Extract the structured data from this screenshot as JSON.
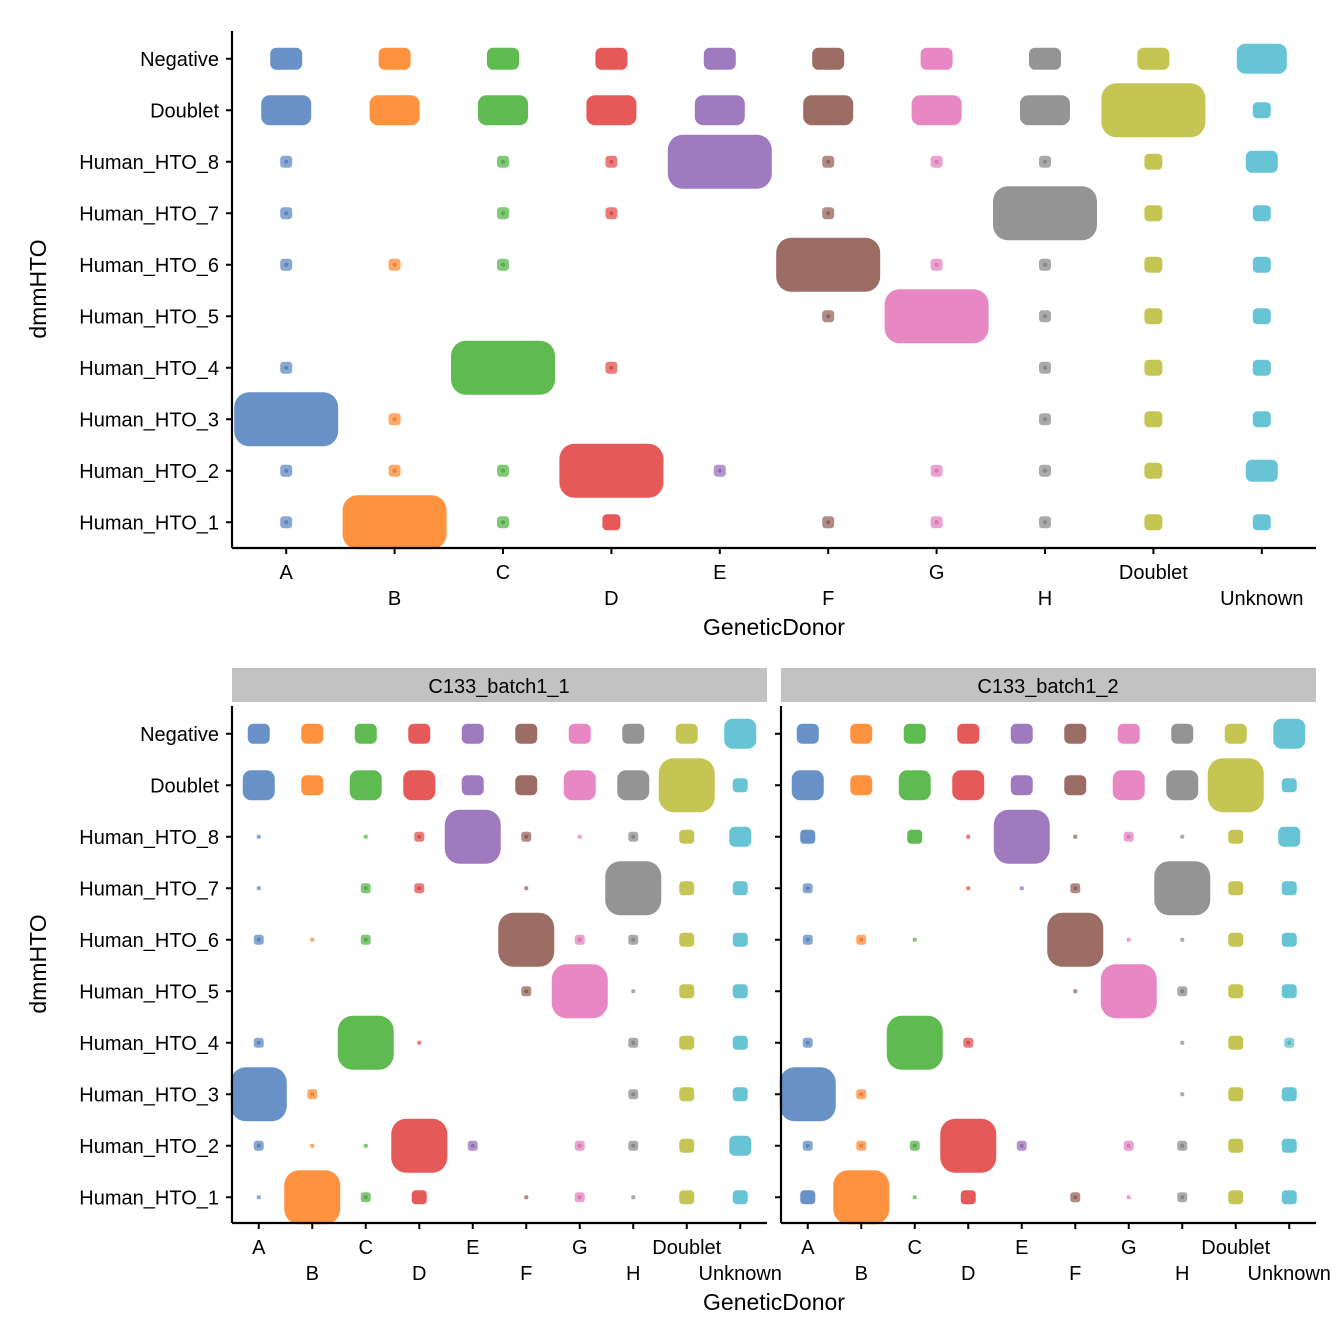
{
  "chart_data": [
    {
      "type": "scatter",
      "style": "jitter",
      "xlabel": "GeneticDonor",
      "ylabel": "dmmHTO",
      "x_categories": [
        "A",
        "B",
        "C",
        "D",
        "E",
        "F",
        "G",
        "H",
        "Doublet",
        "Unknown"
      ],
      "y_categories": [
        "Negative",
        "Doublet",
        "Human_HTO_8",
        "Human_HTO_7",
        "Human_HTO_6",
        "Human_HTO_5",
        "Human_HTO_4",
        "Human_HTO_3",
        "Human_HTO_2",
        "Human_HTO_1"
      ],
      "colors": {
        "A": "#5f8bc4",
        "B": "#ff8c35",
        "C": "#57b649",
        "D": "#e45050",
        "E": "#9b73bc",
        "F": "#96655c",
        "G": "#e681c1",
        "H": "#8e8e8e",
        "Doublet": "#c2c24a",
        "Unknown": "#5ec1d3"
      },
      "density_scale": "0 = no points, 1 = single point, 6 = very many points",
      "density_level": [
        [
          4,
          4,
          4,
          4,
          4,
          4,
          4,
          4,
          4,
          5
        ],
        [
          5,
          5,
          5,
          5,
          5,
          5,
          5,
          5,
          6,
          3
        ],
        [
          2,
          0,
          2,
          2,
          6,
          2,
          2,
          2,
          3,
          4
        ],
        [
          2,
          0,
          2,
          2,
          0,
          2,
          0,
          6,
          3,
          3
        ],
        [
          2,
          2,
          2,
          0,
          0,
          6,
          2,
          2,
          3,
          3
        ],
        [
          0,
          0,
          0,
          0,
          0,
          2,
          6,
          2,
          3,
          3
        ],
        [
          2,
          0,
          6,
          2,
          0,
          0,
          0,
          2,
          3,
          3
        ],
        [
          6,
          2,
          0,
          0,
          0,
          0,
          0,
          2,
          3,
          3
        ],
        [
          2,
          2,
          2,
          6,
          2,
          0,
          2,
          2,
          3,
          4
        ],
        [
          2,
          6,
          2,
          3,
          0,
          2,
          2,
          2,
          3,
          3
        ]
      ]
    },
    {
      "type": "scatter",
      "style": "jitter",
      "xlabel": "GeneticDonor",
      "ylabel": "dmmHTO",
      "x_categories": [
        "A",
        "B",
        "C",
        "D",
        "E",
        "F",
        "G",
        "H",
        "Doublet",
        "Unknown"
      ],
      "y_categories": [
        "Negative",
        "Doublet",
        "Human_HTO_8",
        "Human_HTO_7",
        "Human_HTO_6",
        "Human_HTO_5",
        "Human_HTO_4",
        "Human_HTO_3",
        "Human_HTO_2",
        "Human_HTO_1"
      ],
      "facets": [
        {
          "title": "C133_batch1_1",
          "density_level": [
            [
              4,
              4,
              4,
              4,
              4,
              4,
              4,
              4,
              4,
              5
            ],
            [
              5,
              4,
              5,
              5,
              4,
              4,
              5,
              5,
              6,
              3
            ],
            [
              1,
              0,
              1,
              2,
              6,
              2,
              1,
              2,
              3,
              4
            ],
            [
              1,
              0,
              2,
              2,
              0,
              1,
              0,
              6,
              3,
              3
            ],
            [
              2,
              1,
              2,
              0,
              0,
              6,
              2,
              2,
              3,
              3
            ],
            [
              0,
              0,
              0,
              0,
              0,
              2,
              6,
              1,
              3,
              3
            ],
            [
              2,
              0,
              6,
              1,
              0,
              0,
              0,
              2,
              3,
              3
            ],
            [
              6,
              2,
              0,
              0,
              0,
              0,
              0,
              2,
              3,
              3
            ],
            [
              2,
              1,
              1,
              6,
              2,
              0,
              2,
              2,
              3,
              4
            ],
            [
              1,
              6,
              2,
              3,
              0,
              1,
              2,
              1,
              3,
              3
            ]
          ]
        },
        {
          "title": "C133_batch1_2",
          "density_level": [
            [
              4,
              4,
              4,
              4,
              4,
              4,
              4,
              4,
              4,
              5
            ],
            [
              5,
              4,
              5,
              5,
              4,
              4,
              5,
              5,
              6,
              3
            ],
            [
              3,
              0,
              3,
              1,
              6,
              1,
              2,
              1,
              3,
              4
            ],
            [
              2,
              0,
              0,
              1,
              1,
              2,
              0,
              6,
              3,
              3
            ],
            [
              2,
              2,
              1,
              0,
              0,
              6,
              1,
              1,
              3,
              3
            ],
            [
              0,
              0,
              0,
              0,
              0,
              1,
              6,
              2,
              3,
              3
            ],
            [
              2,
              0,
              6,
              2,
              0,
              0,
              0,
              1,
              3,
              2
            ],
            [
              6,
              2,
              0,
              0,
              0,
              0,
              0,
              1,
              3,
              3
            ],
            [
              2,
              2,
              2,
              6,
              2,
              0,
              2,
              2,
              3,
              3
            ],
            [
              3,
              6,
              1,
              3,
              0,
              2,
              1,
              2,
              3,
              3
            ]
          ]
        }
      ]
    }
  ]
}
